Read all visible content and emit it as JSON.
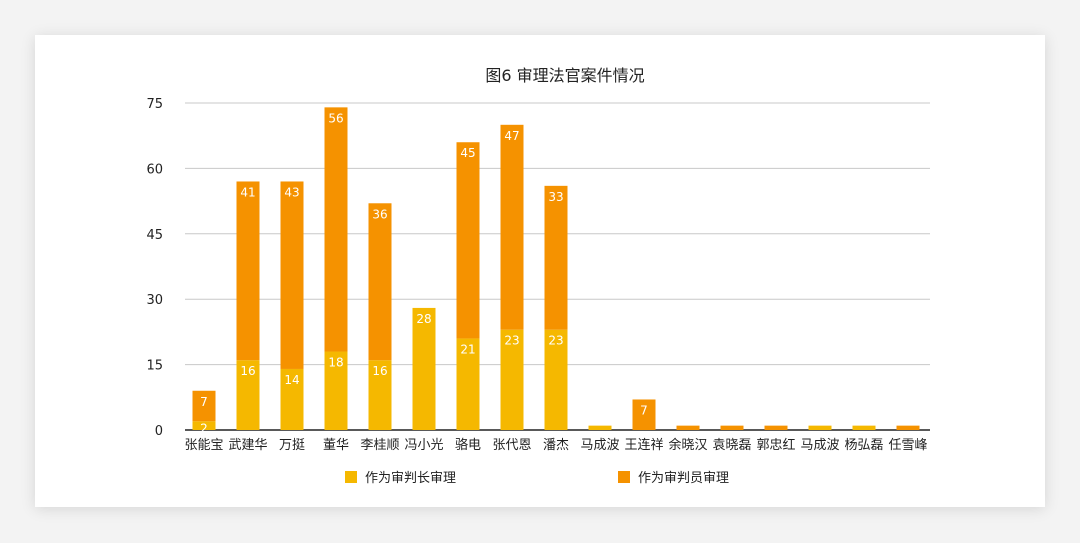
{
  "chart_data": {
    "type": "bar",
    "stacked": true,
    "title": "图6  审理法官案件情况",
    "ylim": [
      0,
      75
    ],
    "yticks": [
      "0",
      "15",
      "30",
      "45",
      "60",
      "75"
    ],
    "grid": true,
    "legend_position": "bottom",
    "categories": [
      "张能宝",
      "武建华",
      "万挺",
      "董华",
      "李桂顺",
      "冯小光",
      "骆电",
      "张代恩",
      "潘杰",
      "马成波",
      "王连祥",
      "余晓汉",
      "袁晓磊",
      "郭忠红",
      "马成波",
      "杨弘磊",
      "任雪峰"
    ],
    "series": [
      {
        "name": "作为审判长审理",
        "color": "#f5b800",
        "values": [
          2,
          16,
          14,
          18,
          16,
          28,
          21,
          23,
          23,
          1,
          0,
          0,
          0,
          0,
          1,
          1,
          0
        ],
        "labels": [
          "2",
          "16",
          "14",
          "18",
          "16",
          "28",
          "21",
          "23",
          "23",
          "",
          "",
          "",
          "",
          "",
          "",
          "",
          ""
        ]
      },
      {
        "name": "作为审判员审理",
        "color": "#f59200",
        "values": [
          7,
          41,
          43,
          56,
          36,
          0,
          45,
          47,
          33,
          0,
          7,
          1,
          1,
          1,
          0,
          0,
          1
        ],
        "labels": [
          "7",
          "41",
          "43",
          "56",
          "36",
          "",
          "45",
          "47",
          "33",
          "",
          "7",
          "",
          "",
          "",
          "",
          "",
          ""
        ]
      }
    ]
  }
}
